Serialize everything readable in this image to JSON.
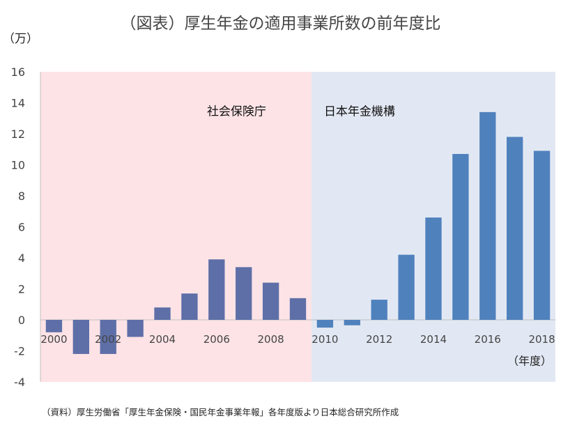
{
  "title": "（図表）厚生年金の適用事業所数の前年度比",
  "unit_label": "（万）",
  "source": "（資料）厚生労働省「厚生年金保険・国民年金事業年報」各年度版より日本総合研究所作成",
  "colors": {
    "era1_background": "#fde3e6",
    "era2_background": "#e2e8f3",
    "era1_bar": "#5e6fa8",
    "era2_bar": "#4f81bd"
  },
  "chart_data": {
    "type": "bar",
    "title": "（図表）厚生年金の適用事業所数の前年度比",
    "xlabel": "（年度）",
    "ylabel": "（万）",
    "ylim": [
      -4,
      16
    ],
    "yticks": [
      -4,
      -2,
      0,
      2,
      4,
      6,
      8,
      10,
      12,
      14,
      16
    ],
    "xtick_labels": [
      "2000",
      "2002",
      "2004",
      "2006",
      "2008",
      "2010",
      "2012",
      "2014",
      "2016",
      "2018"
    ],
    "categories": [
      2000,
      2001,
      2002,
      2003,
      2004,
      2005,
      2006,
      2007,
      2008,
      2009,
      2010,
      2011,
      2012,
      2013,
      2014,
      2015,
      2016,
      2017,
      2018
    ],
    "values": [
      -0.8,
      -2.2,
      -2.2,
      -1.1,
      0.8,
      1.7,
      3.9,
      3.4,
      2.4,
      1.4,
      -0.5,
      -0.35,
      1.3,
      4.2,
      6.6,
      10.7,
      13.4,
      11.8,
      10.9
    ],
    "eras": [
      {
        "label": "社会保険庁",
        "from": 2000,
        "to": 2009
      },
      {
        "label": "日本年金機構",
        "from": 2010,
        "to": 2018
      }
    ],
    "grid": false,
    "legend": "none"
  }
}
